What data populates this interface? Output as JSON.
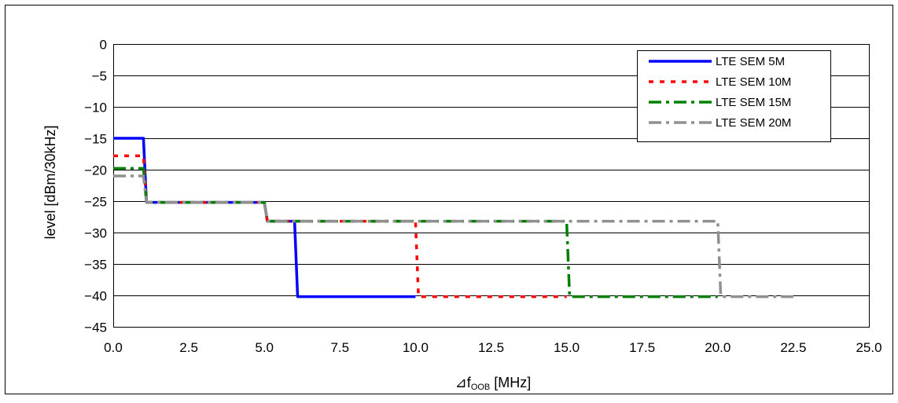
{
  "chart_data": {
    "type": "line",
    "title": "",
    "xlabel": "⊿f",
    "xlabel_subscript": "OOB",
    "xlabel_unit": " [MHz]",
    "ylabel": "level [dBm/30kHz]",
    "xlim": [
      0,
      25
    ],
    "ylim": [
      -45,
      0
    ],
    "x_ticks": [
      "0.0",
      "2.5",
      "5.0",
      "7.5",
      "10.0",
      "12.5",
      "15.0",
      "17.5",
      "20.0",
      "22.5",
      "25.0"
    ],
    "y_ticks": [
      "0",
      "-5",
      "-10",
      "-15",
      "-20",
      "-25",
      "-30",
      "-35",
      "-40",
      "-45"
    ],
    "grid": "horizontal",
    "legend_position": "top-right",
    "series": [
      {
        "name": "LTE SEM 5M",
        "color": "#0000ff",
        "dash": "solid",
        "points": [
          [
            0,
            -15
          ],
          [
            1,
            -15
          ],
          [
            1.1,
            -25.2
          ],
          [
            5,
            -25.2
          ],
          [
            5.1,
            -28.2
          ],
          [
            6,
            -28.2
          ],
          [
            6.1,
            -40.2
          ],
          [
            10,
            -40.2
          ]
        ]
      },
      {
        "name": "LTE SEM 10M",
        "color": "#ff0000",
        "dash": "dot",
        "points": [
          [
            0,
            -17.8
          ],
          [
            1,
            -17.8
          ],
          [
            1.1,
            -25.2
          ],
          [
            5,
            -25.2
          ],
          [
            5.1,
            -28.2
          ],
          [
            10,
            -28.2
          ],
          [
            10.1,
            -40.2
          ],
          [
            15,
            -40.2
          ]
        ]
      },
      {
        "name": "LTE SEM 15M",
        "color": "#008000",
        "dash": "dash-dot",
        "points": [
          [
            0,
            -19.8
          ],
          [
            1,
            -19.8
          ],
          [
            1.1,
            -25.2
          ],
          [
            5,
            -25.2
          ],
          [
            5.1,
            -28.2
          ],
          [
            15,
            -28.2
          ],
          [
            15.1,
            -40.2
          ],
          [
            20,
            -40.2
          ]
        ]
      },
      {
        "name": "LTE SEM 20M",
        "color": "#909090",
        "dash": "dash-dot",
        "points": [
          [
            0,
            -21
          ],
          [
            1,
            -21
          ],
          [
            1.1,
            -25.2
          ],
          [
            5,
            -25.2
          ],
          [
            5.1,
            -28.2
          ],
          [
            20,
            -28.2
          ],
          [
            20.1,
            -40.2
          ],
          [
            22.5,
            -40.2
          ]
        ]
      }
    ]
  }
}
